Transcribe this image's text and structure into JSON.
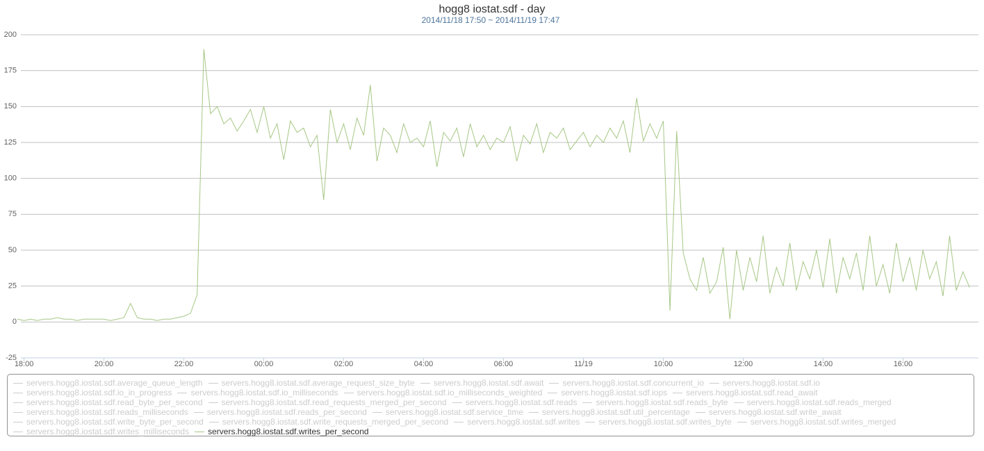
{
  "chart_data": {
    "type": "line",
    "title": "hogg8 iostat.sdf - day",
    "subtitle": "2014/11/18 17:50 ~ 2014/11/19 17:47",
    "xlim": [
      "2014-11-18T17:50",
      "2014-11-19T17:47"
    ],
    "xticks": [
      {
        "value": "2014-11-18T18:00",
        "label": "18:00"
      },
      {
        "value": "2014-11-18T20:00",
        "label": "20:00"
      },
      {
        "value": "2014-11-18T22:00",
        "label": "22:00"
      },
      {
        "value": "2014-11-19T00:00",
        "label": "00:00"
      },
      {
        "value": "2014-11-19T02:00",
        "label": "02:00"
      },
      {
        "value": "2014-11-19T04:00",
        "label": "04:00"
      },
      {
        "value": "2014-11-19T06:00",
        "label": "06:00"
      },
      {
        "value": "2014-11-19T08:00",
        "label": "11/19"
      },
      {
        "value": "2014-11-19T10:00",
        "label": "10:00"
      },
      {
        "value": "2014-11-19T12:00",
        "label": "12:00"
      },
      {
        "value": "2014-11-19T14:00",
        "label": "14:00"
      },
      {
        "value": "2014-11-19T16:00",
        "label": "16:00"
      }
    ],
    "ylim": [
      -25,
      200
    ],
    "yticks": [
      -25,
      0,
      25,
      50,
      75,
      100,
      125,
      150,
      175,
      200
    ],
    "grid": true,
    "x": [
      "2014-11-18T17:50",
      "2014-11-18T18:00",
      "2014-11-18T18:10",
      "2014-11-18T18:20",
      "2014-11-18T18:30",
      "2014-11-18T18:40",
      "2014-11-18T18:50",
      "2014-11-18T19:00",
      "2014-11-18T19:10",
      "2014-11-18T19:20",
      "2014-11-18T19:30",
      "2014-11-18T19:40",
      "2014-11-18T19:50",
      "2014-11-18T20:00",
      "2014-11-18T20:10",
      "2014-11-18T20:20",
      "2014-11-18T20:30",
      "2014-11-18T20:40",
      "2014-11-18T20:50",
      "2014-11-18T21:00",
      "2014-11-18T21:10",
      "2014-11-18T21:20",
      "2014-11-18T21:30",
      "2014-11-18T21:40",
      "2014-11-18T21:50",
      "2014-11-18T22:00",
      "2014-11-18T22:10",
      "2014-11-18T22:20",
      "2014-11-18T22:30",
      "2014-11-18T22:40",
      "2014-11-18T22:50",
      "2014-11-18T23:00",
      "2014-11-18T23:10",
      "2014-11-18T23:20",
      "2014-11-18T23:30",
      "2014-11-18T23:40",
      "2014-11-18T23:50",
      "2014-11-19T00:00",
      "2014-11-19T00:10",
      "2014-11-19T00:20",
      "2014-11-19T00:30",
      "2014-11-19T00:40",
      "2014-11-19T00:50",
      "2014-11-19T01:00",
      "2014-11-19T01:10",
      "2014-11-19T01:20",
      "2014-11-19T01:30",
      "2014-11-19T01:40",
      "2014-11-19T01:50",
      "2014-11-19T02:00",
      "2014-11-19T02:10",
      "2014-11-19T02:20",
      "2014-11-19T02:30",
      "2014-11-19T02:40",
      "2014-11-19T02:50",
      "2014-11-19T03:00",
      "2014-11-19T03:10",
      "2014-11-19T03:20",
      "2014-11-19T03:30",
      "2014-11-19T03:40",
      "2014-11-19T03:50",
      "2014-11-19T04:00",
      "2014-11-19T04:10",
      "2014-11-19T04:20",
      "2014-11-19T04:30",
      "2014-11-19T04:40",
      "2014-11-19T04:50",
      "2014-11-19T05:00",
      "2014-11-19T05:10",
      "2014-11-19T05:20",
      "2014-11-19T05:30",
      "2014-11-19T05:40",
      "2014-11-19T05:50",
      "2014-11-19T06:00",
      "2014-11-19T06:10",
      "2014-11-19T06:20",
      "2014-11-19T06:30",
      "2014-11-19T06:40",
      "2014-11-19T06:50",
      "2014-11-19T07:00",
      "2014-11-19T07:10",
      "2014-11-19T07:20",
      "2014-11-19T07:30",
      "2014-11-19T07:40",
      "2014-11-19T07:50",
      "2014-11-19T08:00",
      "2014-11-19T08:10",
      "2014-11-19T08:20",
      "2014-11-19T08:30",
      "2014-11-19T08:40",
      "2014-11-19T08:50",
      "2014-11-19T09:00",
      "2014-11-19T09:10",
      "2014-11-19T09:20",
      "2014-11-19T09:30",
      "2014-11-19T09:40",
      "2014-11-19T09:50",
      "2014-11-19T10:00",
      "2014-11-19T10:10",
      "2014-11-19T10:20",
      "2014-11-19T10:30",
      "2014-11-19T10:40",
      "2014-11-19T10:50",
      "2014-11-19T11:00",
      "2014-11-19T11:10",
      "2014-11-19T11:20",
      "2014-11-19T11:30",
      "2014-11-19T11:40",
      "2014-11-19T11:50",
      "2014-11-19T12:00",
      "2014-11-19T12:10",
      "2014-11-19T12:20",
      "2014-11-19T12:30",
      "2014-11-19T12:40",
      "2014-11-19T12:50",
      "2014-11-19T13:00",
      "2014-11-19T13:10",
      "2014-11-19T13:20",
      "2014-11-19T13:30",
      "2014-11-19T13:40",
      "2014-11-19T13:50",
      "2014-11-19T14:00",
      "2014-11-19T14:10",
      "2014-11-19T14:20",
      "2014-11-19T14:30",
      "2014-11-19T14:40",
      "2014-11-19T14:50",
      "2014-11-19T15:00",
      "2014-11-19T15:10",
      "2014-11-19T15:20",
      "2014-11-19T15:30",
      "2014-11-19T15:40",
      "2014-11-19T15:50",
      "2014-11-19T16:00",
      "2014-11-19T16:10",
      "2014-11-19T16:20",
      "2014-11-19T16:30",
      "2014-11-19T16:40",
      "2014-11-19T16:50",
      "2014-11-19T17:00",
      "2014-11-19T17:10",
      "2014-11-19T17:20",
      "2014-11-19T17:30",
      "2014-11-19T17:40"
    ],
    "series": [
      {
        "name": "servers.hogg8.iostat.sdf.average_queue_length",
        "visible": false
      },
      {
        "name": "servers.hogg8.iostat.sdf.average_request_size_byte",
        "visible": false
      },
      {
        "name": "servers.hogg8.iostat.sdf.await",
        "visible": false
      },
      {
        "name": "servers.hogg8.iostat.sdf.concurrent_io",
        "visible": false
      },
      {
        "name": "servers.hogg8.iostat.sdf.io",
        "visible": false
      },
      {
        "name": "servers.hogg8.iostat.sdf.io_in_progress",
        "visible": false
      },
      {
        "name": "servers.hogg8.iostat.sdf.io_milliseconds",
        "visible": false
      },
      {
        "name": "servers.hogg8.iostat.sdf.io_milliseconds_weighted",
        "visible": false
      },
      {
        "name": "servers.hogg8.iostat.sdf.iops",
        "visible": false
      },
      {
        "name": "servers.hogg8.iostat.sdf.read_await",
        "visible": false
      },
      {
        "name": "servers.hogg8.iostat.sdf.read_byte_per_second",
        "visible": false
      },
      {
        "name": "servers.hogg8.iostat.sdf.read_requests_merged_per_second",
        "visible": false
      },
      {
        "name": "servers.hogg8.iostat.sdf.reads",
        "visible": false
      },
      {
        "name": "servers.hogg8.iostat.sdf.reads_byte",
        "visible": false
      },
      {
        "name": "servers.hogg8.iostat.sdf.reads_merged",
        "visible": false
      },
      {
        "name": "servers.hogg8.iostat.sdf.reads_milliseconds",
        "visible": false
      },
      {
        "name": "servers.hogg8.iostat.sdf.reads_per_second",
        "visible": false
      },
      {
        "name": "servers.hogg8.iostat.sdf.service_time",
        "visible": false
      },
      {
        "name": "servers.hogg8.iostat.sdf.util_percentage",
        "visible": false
      },
      {
        "name": "servers.hogg8.iostat.sdf.write_await",
        "visible": false
      },
      {
        "name": "servers.hogg8.iostat.sdf.write_byte_per_second",
        "visible": false
      },
      {
        "name": "servers.hogg8.iostat.sdf.write_requests_merged_per_second",
        "visible": false
      },
      {
        "name": "servers.hogg8.iostat.sdf.writes",
        "visible": false
      },
      {
        "name": "servers.hogg8.iostat.sdf.writes_byte",
        "visible": false
      },
      {
        "name": "servers.hogg8.iostat.sdf.writes_merged",
        "visible": false
      },
      {
        "name": "servers.hogg8.iostat.sdf.writes_milliseconds",
        "visible": false
      },
      {
        "name": "servers.hogg8.iostat.sdf.writes_per_second",
        "visible": true,
        "color": "#a6c785",
        "values": [
          2,
          1,
          2,
          1,
          2,
          2,
          3,
          2,
          2,
          1,
          2,
          2,
          2,
          2,
          1,
          2,
          3,
          13,
          3,
          2,
          2,
          1,
          2,
          2,
          3,
          4,
          6,
          19,
          190,
          145,
          150,
          138,
          142,
          133,
          140,
          148,
          132,
          150,
          128,
          138,
          113,
          140,
          132,
          135,
          122,
          130,
          85,
          148,
          125,
          138,
          120,
          142,
          130,
          165,
          112,
          135,
          130,
          118,
          138,
          125,
          128,
          122,
          140,
          108,
          132,
          126,
          135,
          115,
          138,
          122,
          130,
          120,
          128,
          125,
          136,
          112,
          130,
          124,
          138,
          118,
          132,
          128,
          135,
          120,
          126,
          132,
          122,
          130,
          125,
          135,
          128,
          140,
          118,
          156,
          126,
          138,
          128,
          140,
          8,
          133,
          48,
          30,
          22,
          45,
          20,
          28,
          52,
          2,
          50,
          22,
          45,
          28,
          60,
          20,
          38,
          25,
          55,
          22,
          42,
          30,
          50,
          24,
          58,
          20,
          45,
          30,
          48,
          22,
          60,
          25,
          40,
          20,
          55,
          28,
          45,
          22,
          50,
          30,
          42,
          18,
          60,
          22,
          35,
          24
        ]
      }
    ]
  }
}
